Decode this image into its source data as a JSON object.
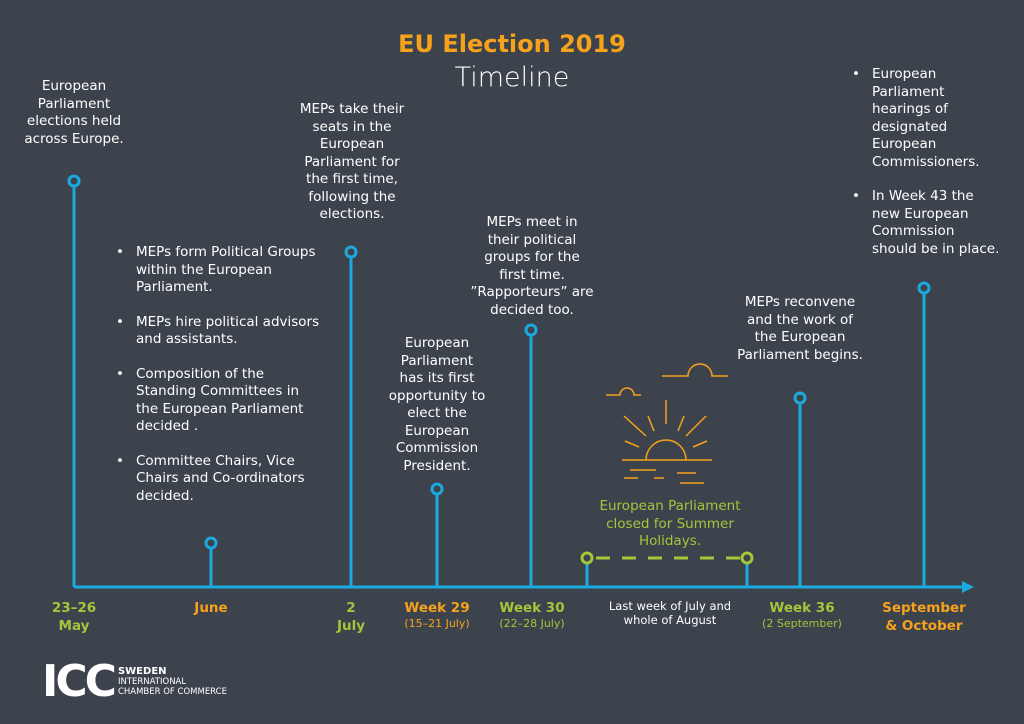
{
  "header": {
    "title": "EU Election 2019",
    "subtitle": "Timeline"
  },
  "colors": {
    "background": "#3d434c",
    "orange": "#f7a21b",
    "green": "#a5c53a",
    "blue": "#1ba9e0"
  },
  "events": [
    {
      "date": "23–26",
      "date2": "May",
      "text": "European Parliament elections held across Europe."
    },
    {
      "date": "June",
      "bullets": [
        "MEPs form Political Groups within the European Parliament.",
        "MEPs hire political advisors and assistants.",
        "Composition of the Standing Committees in the European Parliament decided .",
        "Committee Chairs, Vice Chairs and Co-ordinators decided."
      ]
    },
    {
      "date": "2",
      "date2": "July",
      "text": "MEPs take their seats in the European Parliament for the first time, following the elections."
    },
    {
      "date": "Week 29",
      "sub": "(15–21 July)",
      "text": "European Parliament has its first opportunity to elect the European Commission President."
    },
    {
      "date": "Week 30",
      "sub": "(22–28 July)",
      "text": "MEPs meet in their political groups for the first time. ”Rapporteurs” are decided too."
    },
    {
      "date": "Last week of July and whole of August",
      "text": "European Parliament closed for Summer Holidays.",
      "icon": "sunset-icon"
    },
    {
      "date": "Week 36",
      "sub": "(2 September)",
      "text": "MEPs reconvene and the work of the European Parliament begins."
    },
    {
      "date": "September",
      "date2": "& October",
      "bullets": [
        "European Parliament hearings of designated European Commissioners.",
        "In Week 43 the new European Commission should be in place."
      ]
    }
  ],
  "logo": {
    "mark": "ICC",
    "line1": "SWEDEN",
    "line2": "INTERNATIONAL",
    "line3": "CHAMBER OF COMMERCE"
  }
}
